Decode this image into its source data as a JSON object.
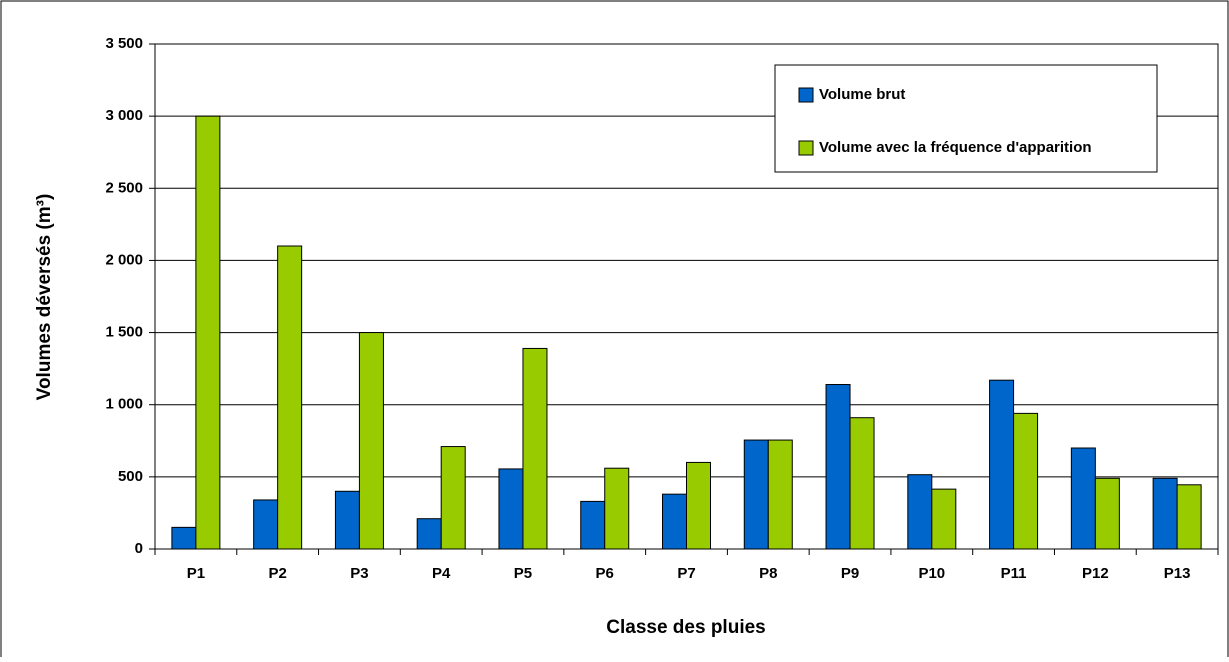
{
  "chart_data": {
    "type": "bar",
    "ylabel": "Volumes déversés (m³)",
    "xlabel": "Classe des pluies",
    "categories": [
      "P1",
      "P2",
      "P3",
      "P4",
      "P5",
      "P6",
      "P7",
      "P8",
      "P9",
      "P10",
      "P11",
      "P12",
      "P13"
    ],
    "series": [
      {
        "name": "Volume brut",
        "color": "#0066cc",
        "values": [
          150,
          340,
          400,
          210,
          555,
          330,
          380,
          755,
          1140,
          515,
          1170,
          700,
          490
        ]
      },
      {
        "name": "Volume avec la fréquence d'apparition",
        "color": "#99cc00",
        "values": [
          3000,
          2100,
          1500,
          710,
          1390,
          560,
          600,
          755,
          910,
          415,
          940,
          490,
          445
        ]
      }
    ],
    "ylim": [
      0,
      3500
    ],
    "yticks": [
      0,
      500,
      {
        "value": 1000,
        "label": "1 000"
      },
      {
        "value": 1500,
        "label": "1 500"
      },
      {
        "value": 2000,
        "label": "2 000"
      },
      {
        "value": 2500,
        "label": "2 500"
      },
      {
        "value": 3000,
        "label": "3 000"
      },
      {
        "value": 3500,
        "label": "3 500"
      }
    ],
    "grid": true,
    "legend": "top-right"
  }
}
